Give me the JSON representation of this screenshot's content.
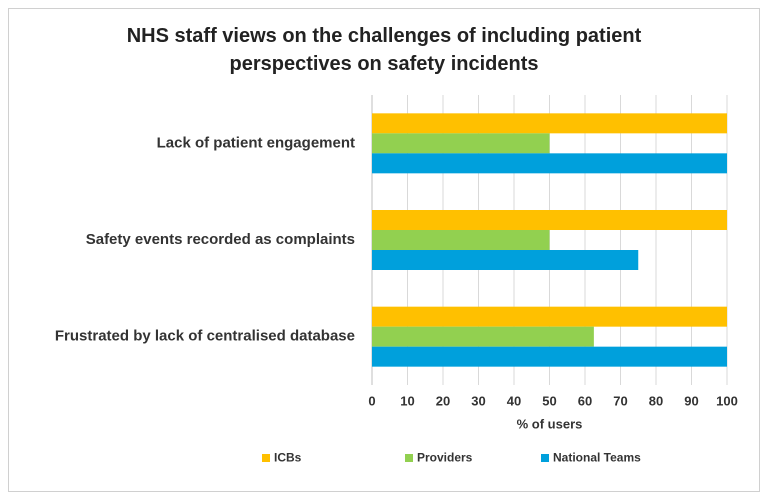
{
  "chart_data": {
    "type": "hbar",
    "title": "NHS staff views on the challenges of including patient perspectives on safety incidents",
    "categories": [
      "Lack of patient engagement",
      "Safety events recorded as complaints",
      "Frustrated by lack of centralised database"
    ],
    "series": [
      {
        "name": "ICBs",
        "color": "#ffc000",
        "values": [
          100,
          100,
          100
        ]
      },
      {
        "name": "Providers",
        "color": "#92d050",
        "values": [
          50,
          50,
          62.5
        ]
      },
      {
        "name": "National Teams",
        "color": "#00a0dc",
        "values": [
          100,
          75,
          100
        ]
      }
    ],
    "xlabel": "% of users",
    "xlim": [
      0,
      100
    ],
    "xticks": [
      0,
      10,
      20,
      30,
      40,
      50,
      60,
      70,
      80,
      90,
      100
    ],
    "grid": true,
    "legend": "bottom"
  }
}
